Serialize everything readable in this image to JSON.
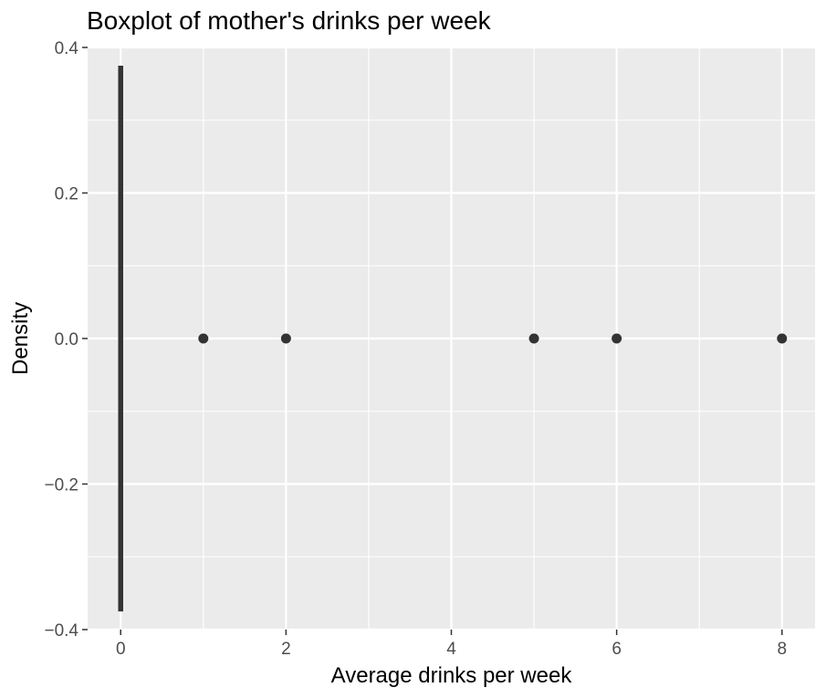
{
  "chart_data": {
    "type": "boxplot",
    "title": "Boxplot of mother's drinks per week",
    "xlabel": "Average drinks per week",
    "ylabel": "Density",
    "xlim": [
      -0.4,
      8.4
    ],
    "ylim": [
      -0.4,
      0.4
    ],
    "x_ticks": [
      0,
      2,
      4,
      6,
      8
    ],
    "x_tick_labels": [
      "0",
      "2",
      "4",
      "6",
      "8"
    ],
    "y_ticks": [
      -0.4,
      -0.2,
      0.0,
      0.2,
      0.4
    ],
    "y_tick_labels": [
      "−0.4",
      "−0.2",
      "0.0",
      "0.2",
      "0.4"
    ],
    "box": {
      "min": 0,
      "q1": 0,
      "median": 0,
      "q3": 0,
      "max": 0,
      "y_range": [
        -0.375,
        0.375
      ]
    },
    "outliers": [
      1,
      2,
      5,
      6,
      8
    ],
    "grid": true,
    "panel_color": "#ebebeb",
    "mark_color": "#333333"
  }
}
